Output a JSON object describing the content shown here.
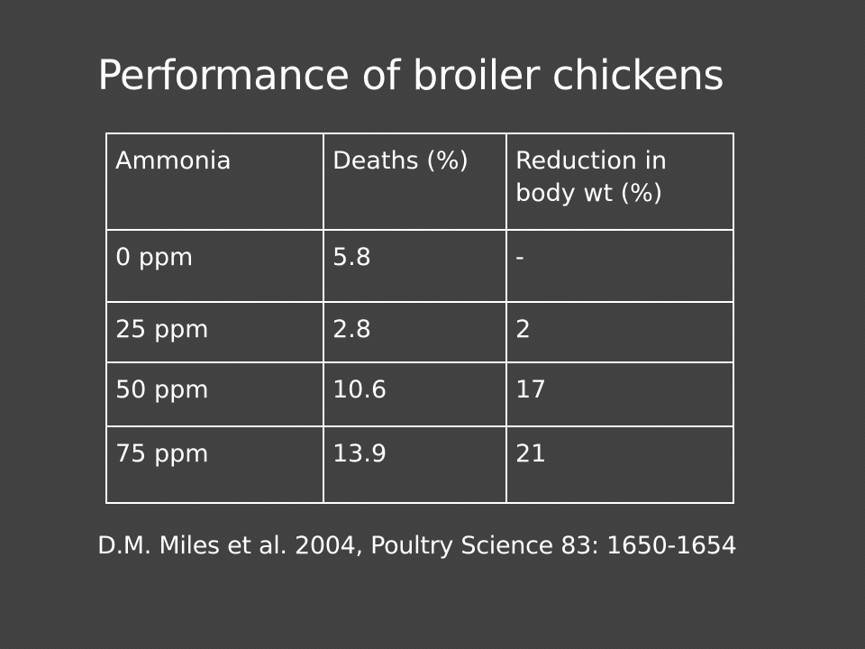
{
  "slide": {
    "title": "Performance of broiler chickens",
    "citation": "D.M. Miles et al. 2004, Poultry Science 83: 1650-1654"
  },
  "table": {
    "headers": [
      "Ammonia",
      "Deaths (%)",
      "Reduction in body wt (%)"
    ],
    "rows": [
      [
        "0 ppm",
        "5.8",
        "-"
      ],
      [
        "25 ppm",
        "2.8",
        "2"
      ],
      [
        "50 ppm",
        "10.6",
        "17"
      ],
      [
        "75 ppm",
        "13.9",
        "21"
      ]
    ]
  }
}
